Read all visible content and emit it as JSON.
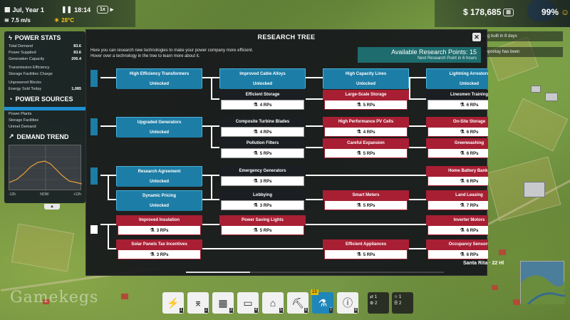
{
  "topbar": {
    "date": "Jul, Year 1",
    "time": "18:14",
    "speed_label": "1x",
    "wind": "7.5 m/s",
    "temperature": "28°C",
    "money": "$ 178,685",
    "approval": "99%"
  },
  "stats_panel": {
    "power_stats_title": "POWER STATS",
    "stats": [
      {
        "label": "Total Demand",
        "value": "83.6"
      },
      {
        "label": "Power Supplied",
        "value": "83.6"
      },
      {
        "label": "Generation Capacity",
        "value": "206.4"
      },
      {
        "label": "Transmission Efficiency",
        "value": ""
      },
      {
        "label": "Storage Facilities Charge",
        "value": ""
      },
      {
        "label": "Unpowered Blocks",
        "value": ""
      },
      {
        "label": "Energy Sold Today",
        "value": "1,085"
      }
    ],
    "power_sources_title": "POWER SOURCES",
    "sources": [
      "Power Plants",
      "Storage Facilities",
      "Unmet Demand"
    ],
    "demand_trend_title": "DEMAND TREND",
    "trend_x_labels": [
      "-12h",
      "NOW",
      "+12h"
    ]
  },
  "modal": {
    "title": "RESEARCH TREE",
    "intro_line1": "Here you can research new technologies to make your power company more efficient.",
    "intro_line2": "Hover over a technology in the tree to learn more about it.",
    "available_label": "Available Research Points: 15",
    "next_label": "Next Research Point in 6 hours",
    "close_label": "✕"
  },
  "research_nodes": [
    {
      "title": "High Efficiency Transformers",
      "value": "Unlocked",
      "state": "unlocked"
    },
    {
      "title": "Improved Cable Alloys",
      "value": "Unlocked",
      "state": "unlocked"
    },
    {
      "title": "High Capacity Lines",
      "value": "Unlocked",
      "state": "unlocked"
    },
    {
      "title": "Lightning Arrestors",
      "value": "Unlocked",
      "state": "unlocked"
    },
    {
      "title": "Efficient Storage",
      "value": "4 RPs",
      "state": "available"
    },
    {
      "title": "Large-Scale Storage",
      "value": "5 RPs",
      "state": "locked"
    },
    {
      "title": "Linesmen Training",
      "value": "6 RPs",
      "state": "available"
    },
    {
      "title": "Upgraded Generators",
      "value": "Unlocked",
      "state": "unlocked"
    },
    {
      "title": "Composite Turbine Blades",
      "value": "4 RPs",
      "state": "available"
    },
    {
      "title": "High Performance PV Cells",
      "value": "4 RPs",
      "state": "locked"
    },
    {
      "title": "On-Site Storage",
      "value": "6 RPs",
      "state": "locked"
    },
    {
      "title": "Pollution Filters",
      "value": "5 RPs",
      "state": "available"
    },
    {
      "title": "Careful Expansion",
      "value": "5 RPs",
      "state": "locked"
    },
    {
      "title": "Greenwashing",
      "value": "6 RPs",
      "state": "locked"
    },
    {
      "title": "Research Agreement",
      "value": "Unlocked",
      "state": "unlocked"
    },
    {
      "title": "Emergency Generators",
      "value": "3 RPs",
      "state": "available"
    },
    {
      "title": "Home Battery Banks",
      "value": "6 RPs",
      "state": "locked"
    },
    {
      "title": "Dynamic Pricing",
      "value": "Unlocked",
      "state": "unlocked"
    },
    {
      "title": "Lobbying",
      "value": "3 RPs",
      "state": "available"
    },
    {
      "title": "Smart Meters",
      "value": "5 RPs",
      "state": "locked"
    },
    {
      "title": "Land Leasing",
      "value": "7 RPs",
      "state": "locked"
    },
    {
      "title": "Improved Insulation",
      "value": "3 RPs",
      "state": "locked"
    },
    {
      "title": "Power Saving Lights",
      "value": "5 RPs",
      "state": "locked"
    },
    {
      "title": "Inverter Motors",
      "value": "6 RPs",
      "state": "locked"
    },
    {
      "title": "Solar Panels Tax Incentives",
      "value": "3 RPs",
      "state": "locked"
    },
    {
      "title": "Efficient Appliances",
      "value": "5 RPs",
      "state": "locked"
    },
    {
      "title": "Occupancy Sensors",
      "value": "6 RPs",
      "state": "locked"
    }
  ],
  "notifications": [
    "... being built in 8 days",
    "... Colopontay has been"
  ],
  "city_label": "Santa Rita · 22 Hl",
  "watermark": "Gamekegs",
  "toolbar": {
    "tools": [
      {
        "icon": "power-plant-icon",
        "glyph": "⚡",
        "num": "1"
      },
      {
        "icon": "transmission-tower-icon",
        "glyph": "⌆",
        "num": "2"
      },
      {
        "icon": "substation-icon",
        "glyph": "▦",
        "num": "3"
      },
      {
        "icon": "battery-storage-icon",
        "glyph": "▭",
        "num": "4"
      },
      {
        "icon": "factory-icon",
        "glyph": "⌂",
        "num": "5"
      },
      {
        "icon": "bulldozer-icon",
        "glyph": "⛏",
        "num": "6"
      },
      {
        "icon": "research-icon",
        "glyph": "⚗",
        "num": "7",
        "badge": "15"
      },
      {
        "icon": "info-icon",
        "glyph": "ⓘ",
        "num": "8"
      }
    ]
  },
  "colors": {
    "unlocked": "#1c7da6",
    "locked": "#a81f34",
    "accent_teal": "#1e6c6e",
    "temp": "#f5c518"
  }
}
